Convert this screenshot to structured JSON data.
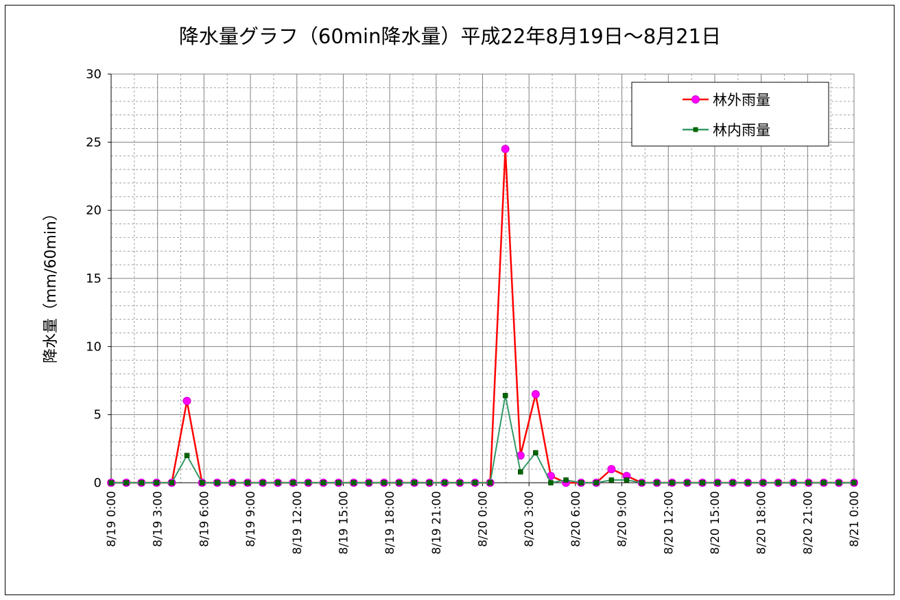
{
  "chart_data": {
    "type": "line",
    "title": "降水量グラフ（60min降水量）平成22年8月19日～8月21日",
    "ylabel": "降水量（mm/60min）",
    "xlabel": "",
    "ylim": [
      0,
      30
    ],
    "y_ticks": [
      0,
      5,
      10,
      15,
      20,
      25,
      30
    ],
    "x_tick_labels": [
      "8/19 0:00",
      "8/19 3:00",
      "8/19 6:00",
      "8/19 9:00",
      "8/19 12:00",
      "8/19 15:00",
      "8/19 18:00",
      "8/19 21:00",
      "8/20 0:00",
      "8/20 3:00",
      "8/20 6:00",
      "8/20 9:00",
      "8/20 12:00",
      "8/20 15:00",
      "8/20 18:00",
      "8/20 21:00",
      "8/21 0:00"
    ],
    "grid": true,
    "legend_position": "top-right",
    "series": [
      {
        "name": "林外雨量",
        "color": "#ff0000",
        "marker_color": "#ff00ff",
        "marker": "circle",
        "values": [
          0,
          0,
          0,
          0,
          0,
          6,
          0,
          0,
          0,
          0,
          0,
          0,
          0,
          0,
          0,
          0,
          0,
          0,
          0,
          0,
          0,
          0,
          0,
          0,
          0,
          0,
          24.5,
          2,
          6.5,
          0.5,
          0,
          0,
          0,
          1,
          0.5,
          0,
          0,
          0,
          0,
          0,
          0,
          0,
          0,
          0,
          0,
          0,
          0,
          0,
          0,
          0
        ]
      },
      {
        "name": "林内雨量",
        "color": "#339966",
        "marker_color": "#006600",
        "marker": "square",
        "values": [
          0,
          0,
          0,
          0,
          0,
          2,
          0,
          0,
          0,
          0,
          0,
          0,
          0,
          0,
          0,
          0,
          0,
          0,
          0,
          0,
          0,
          0,
          0,
          0,
          0,
          0,
          6.4,
          0.8,
          2.2,
          0,
          0.2,
          0,
          0,
          0.2,
          0.2,
          0,
          0,
          0,
          0,
          0,
          0,
          0,
          0,
          0,
          0,
          0,
          0,
          0,
          0,
          0
        ]
      }
    ]
  }
}
